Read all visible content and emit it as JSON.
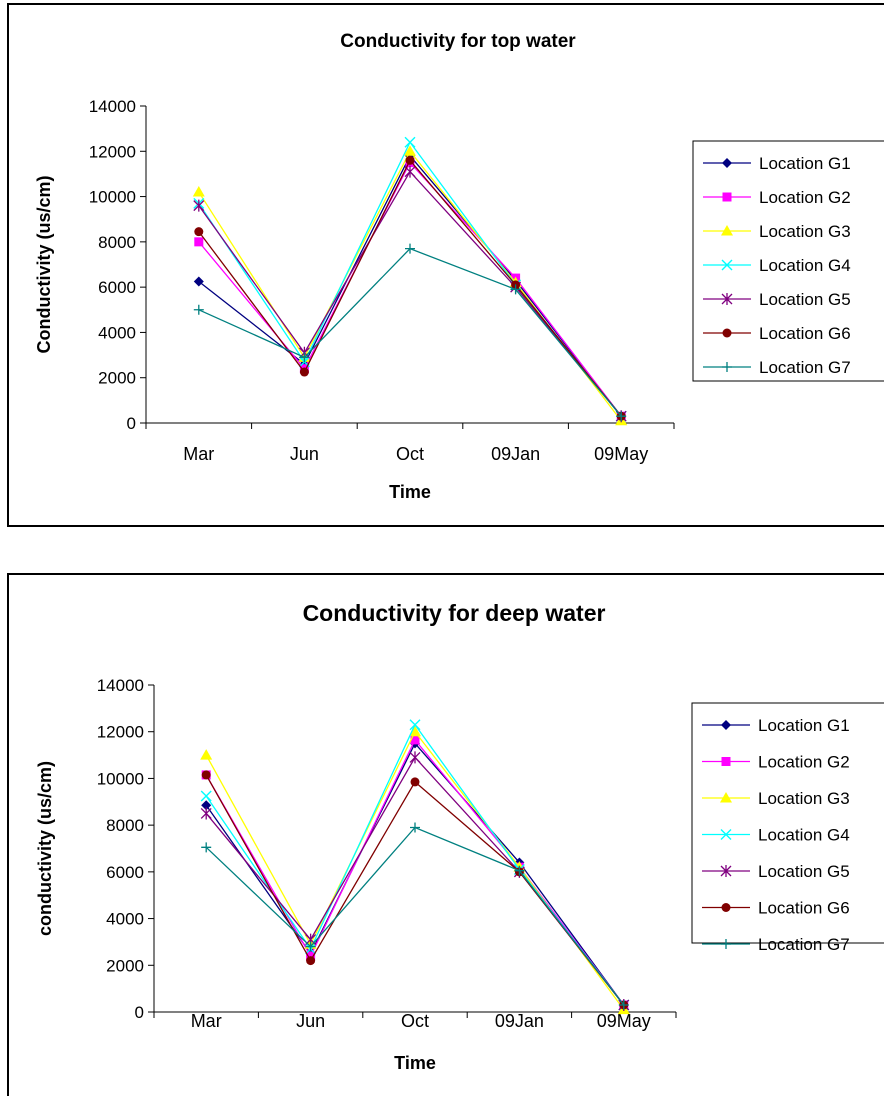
{
  "chart_data": [
    {
      "type": "line",
      "title": "Conductivity for top water",
      "xlabel": "Time",
      "ylabel": "Conductivity (us/cm)",
      "categories": [
        "Mar",
        "Jun",
        "Oct",
        "09Jan",
        "09May"
      ],
      "ylim": [
        0,
        14000
      ],
      "yticks": [
        "0",
        "2000",
        "4000",
        "6000",
        "8000",
        "10000",
        "12000",
        "14000"
      ],
      "grid": false,
      "legend_position": "right",
      "series": [
        {
          "name": "Location G1",
          "color": "#000080",
          "marker": "diamond",
          "values": [
            6250,
            2600,
            11800,
            6300,
            300
          ]
        },
        {
          "name": "Location G2",
          "color": "#FF00FF",
          "marker": "square",
          "values": [
            8000,
            2400,
            11500,
            6400,
            300
          ]
        },
        {
          "name": "Location G3",
          "color": "#FFFF00",
          "marker": "triangle",
          "values": [
            10200,
            2900,
            12000,
            6200,
            100
          ]
        },
        {
          "name": "Location G4",
          "color": "#00FFFF",
          "marker": "x",
          "values": [
            9700,
            2700,
            12400,
            6100,
            300
          ]
        },
        {
          "name": "Location G5",
          "color": "#800080",
          "marker": "star",
          "values": [
            9600,
            3100,
            11100,
            6000,
            300
          ]
        },
        {
          "name": "Location G6",
          "color": "#800000",
          "marker": "circle",
          "values": [
            8450,
            2250,
            11600,
            6100,
            300
          ]
        },
        {
          "name": "Location G7",
          "color": "#008080",
          "marker": "plus",
          "values": [
            5000,
            2900,
            7700,
            5900,
            300
          ]
        }
      ]
    },
    {
      "type": "line",
      "title": "Conductivity for deep water",
      "xlabel": "Time",
      "ylabel": "conductivity (us/cm)",
      "categories": [
        "Mar",
        "Jun",
        "Oct",
        "09Jan",
        "09May"
      ],
      "ylim": [
        0,
        14000
      ],
      "yticks": [
        "0",
        "2000",
        "4000",
        "6000",
        "8000",
        "10000",
        "12000",
        "14000"
      ],
      "grid": false,
      "legend_position": "right",
      "series": [
        {
          "name": "Location G1",
          "color": "#000080",
          "marker": "diamond",
          "values": [
            8850,
            2500,
            11500,
            6400,
            300
          ]
        },
        {
          "name": "Location G2",
          "color": "#FF00FF",
          "marker": "square",
          "values": [
            10150,
            2400,
            11650,
            6200,
            300
          ]
        },
        {
          "name": "Location G3",
          "color": "#FFFF00",
          "marker": "triangle",
          "values": [
            11000,
            2900,
            12000,
            6200,
            100
          ]
        },
        {
          "name": "Location G4",
          "color": "#00FFFF",
          "marker": "x",
          "values": [
            9250,
            2700,
            12300,
            6100,
            300
          ]
        },
        {
          "name": "Location G5",
          "color": "#800080",
          "marker": "star",
          "values": [
            8500,
            3100,
            10900,
            6000,
            300
          ]
        },
        {
          "name": "Location G6",
          "color": "#800000",
          "marker": "circle",
          "values": [
            10150,
            2200,
            9850,
            6000,
            300
          ]
        },
        {
          "name": "Location G7",
          "color": "#008080",
          "marker": "plus",
          "values": [
            7050,
            2800,
            7900,
            6050,
            300
          ]
        }
      ]
    }
  ]
}
